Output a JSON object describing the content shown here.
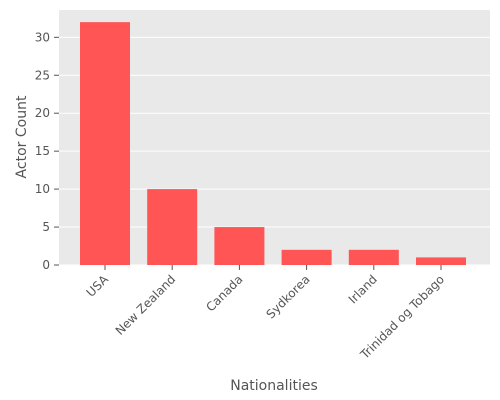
{
  "chart_data": {
    "type": "bar",
    "categories": [
      "USA",
      "New Zealand",
      "Canada",
      "Sydkorea",
      "Irland",
      "Trinidad og Tobago"
    ],
    "values": [
      32,
      10,
      5,
      2,
      2,
      1
    ],
    "title": "",
    "xlabel": "Nationalities",
    "ylabel": "Actor Count",
    "ylim": [
      0,
      33.6
    ],
    "yticks": [
      0,
      5,
      10,
      15,
      20,
      25,
      30
    ],
    "grid": true,
    "legend": "none",
    "bar_color": "#ff5555",
    "plot_background": "#e9e9e9"
  }
}
